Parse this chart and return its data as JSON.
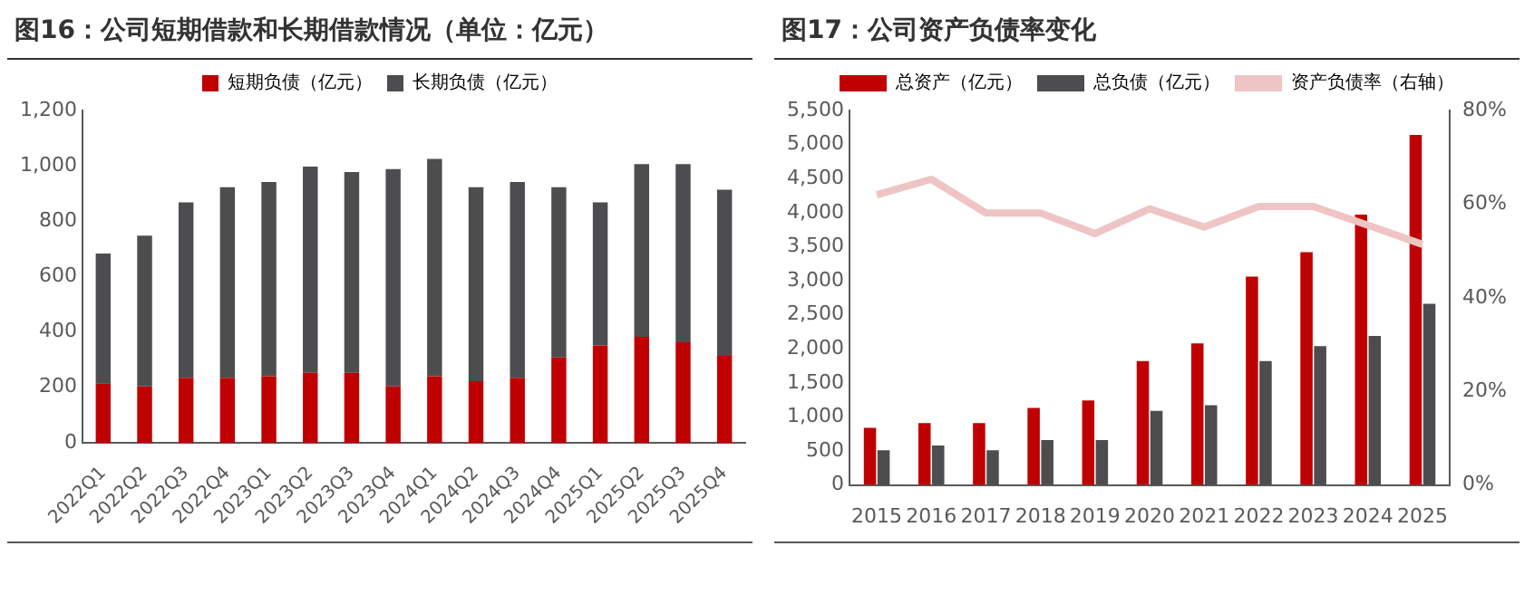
{
  "chart_data": [
    {
      "type": "bar",
      "title": "图16：公司短期借款和长期借款情况（单位：亿元）",
      "stacked": true,
      "legend": "top",
      "grid": false,
      "categories": [
        "2022Q1",
        "2022Q2",
        "2022Q3",
        "2022Q4",
        "2023Q1",
        "2023Q2",
        "2023Q3",
        "2023Q4",
        "2024Q1",
        "2024Q2",
        "2024Q3",
        "2024Q4",
        "2025Q1",
        "2025Q2",
        "2025Q3",
        "2025Q4"
      ],
      "ylim": [
        0,
        1200
      ],
      "yticks": [
        {
          "value": 0,
          "label": "0"
        },
        {
          "value": 200,
          "label": "200"
        },
        {
          "value": 400,
          "label": "400"
        },
        {
          "value": 600,
          "label": "600"
        },
        {
          "value": 800,
          "label": "800"
        },
        {
          "value": 1000,
          "label": "1,000"
        },
        {
          "value": 1200,
          "label": "1,200"
        }
      ],
      "series": [
        {
          "name": "短期负债（亿元）",
          "color": "#c00000",
          "values": [
            215,
            203,
            234,
            234,
            240,
            252,
            252,
            203,
            240,
            222,
            234,
            308,
            351,
            382,
            363,
            314
          ]
        },
        {
          "name": "长期负债（亿元）",
          "color": "#4d4d4f",
          "values": [
            468,
            545,
            634,
            689,
            702,
            745,
            726,
            785,
            785,
            701,
            708,
            615,
            517,
            624,
            643,
            600
          ]
        }
      ]
    },
    {
      "type": "bar",
      "title": "图17：公司资产负债率变化",
      "legend": "top",
      "grid": false,
      "categories": [
        "2015",
        "2016",
        "2017",
        "2018",
        "2019",
        "2020",
        "2021",
        "2022",
        "2023",
        "2024",
        "2025"
      ],
      "ylim": [
        0,
        5500
      ],
      "yticks": [
        {
          "value": 0,
          "label": "0"
        },
        {
          "value": 500,
          "label": "500"
        },
        {
          "value": 1000,
          "label": "1,000"
        },
        {
          "value": 1500,
          "label": "1,500"
        },
        {
          "value": 2000,
          "label": "2,000"
        },
        {
          "value": 2500,
          "label": "2,500"
        },
        {
          "value": 3000,
          "label": "3,000"
        },
        {
          "value": 3500,
          "label": "3,500"
        },
        {
          "value": 4000,
          "label": "4,000"
        },
        {
          "value": 4500,
          "label": "4,500"
        },
        {
          "value": 5000,
          "label": "5,000"
        },
        {
          "value": 5500,
          "label": "5,500"
        }
      ],
      "y2lim": [
        0,
        80
      ],
      "y2ticks": [
        {
          "value": 0,
          "label": "0%"
        },
        {
          "value": 20,
          "label": "20%"
        },
        {
          "value": 40,
          "label": "40%"
        },
        {
          "value": 60,
          "label": "60%"
        },
        {
          "value": 80,
          "label": "80%"
        }
      ],
      "series": [
        {
          "name": "总资产（亿元）",
          "color": "#c00000",
          "values": [
            840,
            910,
            910,
            1130,
            1240,
            1820,
            2080,
            3060,
            3420,
            3970,
            5140
          ]
        },
        {
          "name": "总负债（亿元）",
          "color": "#4d4d4f",
          "values": [
            510,
            580,
            510,
            660,
            660,
            1090,
            1170,
            1820,
            2040,
            2190,
            2660
          ]
        },
        {
          "name": "资产负债率（右轴）",
          "type": "line",
          "axis": "y2",
          "marker": "none",
          "color": "#efc4c4",
          "values": [
            62.0,
            65.3,
            58.1,
            58.1,
            53.7,
            59.0,
            55.1,
            59.5,
            59.5,
            55.5,
            51.4
          ]
        }
      ]
    }
  ]
}
